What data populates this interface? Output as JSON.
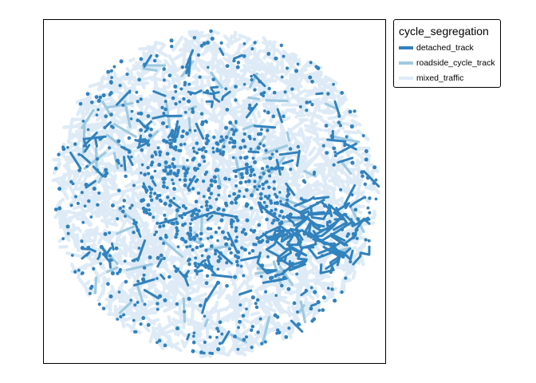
{
  "chart_data": {
    "type": "map",
    "legend": {
      "title": "cycle_segregation",
      "placement": "right",
      "items": [
        {
          "key": "detached_track",
          "label": "detached_track",
          "color": "#3182bd"
        },
        {
          "key": "roadside_cycle_track",
          "label": "roadside_cycle_track",
          "color": "#9ecae1"
        },
        {
          "key": "mixed_traffic",
          "label": "mixed_traffic",
          "color": "#deebf7"
        }
      ]
    }
  }
}
